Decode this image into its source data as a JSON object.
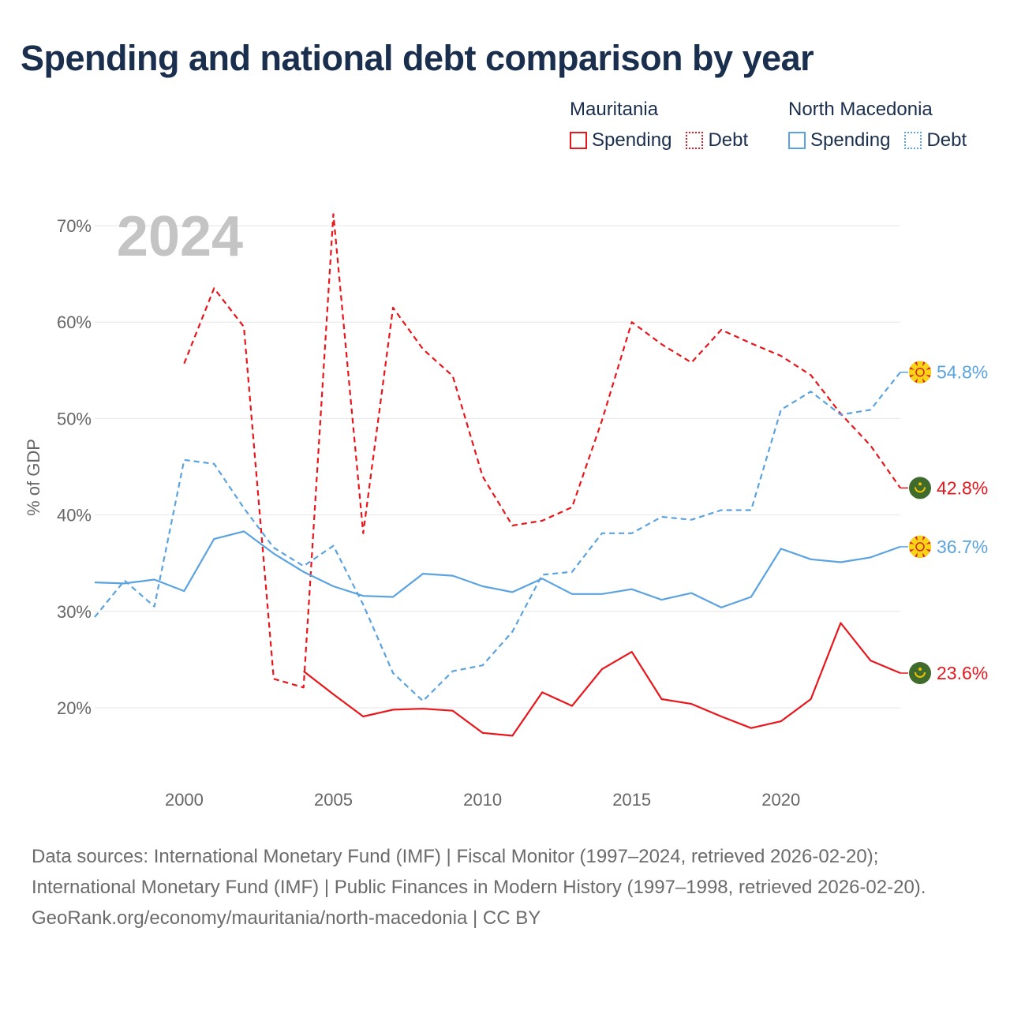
{
  "title": "Spending and national debt comparison by year",
  "legend": {
    "groups": [
      {
        "country": "Mauritania",
        "spending_label": "Spending",
        "debt_label": "Debt",
        "color": "#e8161b"
      },
      {
        "country": "North Macedonia",
        "spending_label": "Spending",
        "debt_label": "Debt",
        "color": "#5aa3e0"
      }
    ]
  },
  "year_badge": "2024",
  "footer": {
    "sources": "Data sources: International Monetary Fund (IMF) | Fiscal Monitor (1997–2024, retrieved 2026-02-20); International Monetary Fund (IMF) | Public Finances in Modern History (1997–1998, retrieved 2026-02-20).",
    "credit": "GeoRank.org/economy/mauritania/north-macedonia | CC BY"
  },
  "chart_data": {
    "type": "line",
    "title": "Spending and national debt comparison by year",
    "xlabel": "",
    "ylabel": "% of GDP",
    "xlim": [
      1997,
      2024
    ],
    "ylim": [
      15,
      72
    ],
    "x_ticks": [
      2000,
      2005,
      2010,
      2015,
      2020
    ],
    "x_tick_labels": [
      "2000",
      "2005",
      "2010",
      "2015",
      "2020"
    ],
    "y_ticks": [
      20,
      30,
      40,
      50,
      60,
      70
    ],
    "y_tick_labels": [
      "20%",
      "30%",
      "40%",
      "50%",
      "60%",
      "70%"
    ],
    "grid": true,
    "series": [
      {
        "name": "Mauritania Debt",
        "country": "Mauritania",
        "measure": "Debt",
        "style": "dashed",
        "color": "#e8161b",
        "x": [
          2000,
          2001,
          2002,
          2003,
          2004,
          2005,
          2006,
          2007,
          2008,
          2009,
          2010,
          2011,
          2012,
          2013,
          2014,
          2015,
          2016,
          2017,
          2018,
          2019,
          2020,
          2021,
          2022,
          2023,
          2024
        ],
        "values": [
          55.7,
          63.5,
          59.5,
          23.0,
          22.1,
          71.2,
          38.1,
          61.5,
          57.2,
          54.4,
          44.0,
          38.9,
          39.4,
          40.8,
          49.8,
          60.0,
          57.7,
          55.8,
          59.2,
          57.8,
          56.5,
          54.5,
          50.5,
          47.2,
          42.8
        ],
        "end_label": "42.8%"
      },
      {
        "name": "Mauritania Spending",
        "country": "Mauritania",
        "measure": "Spending",
        "style": "solid",
        "color": "#e8161b",
        "x": [
          2004,
          2005,
          2006,
          2007,
          2008,
          2009,
          2010,
          2011,
          2012,
          2013,
          2014,
          2015,
          2016,
          2017,
          2018,
          2019,
          2020,
          2021,
          2022,
          2023,
          2024
        ],
        "values": [
          23.8,
          21.4,
          19.1,
          19.8,
          19.9,
          19.7,
          17.4,
          17.1,
          21.6,
          20.2,
          24.0,
          25.8,
          20.9,
          20.4,
          19.1,
          17.9,
          18.6,
          20.9,
          28.8,
          24.9,
          23.6
        ],
        "end_label": "23.6%"
      },
      {
        "name": "North Macedonia Debt",
        "country": "North Macedonia",
        "measure": "Debt",
        "style": "dashed",
        "color": "#5aa3e0",
        "x": [
          1997,
          1998,
          1999,
          2000,
          2001,
          2002,
          2003,
          2004,
          2005,
          2006,
          2007,
          2008,
          2009,
          2010,
          2011,
          2012,
          2013,
          2014,
          2015,
          2016,
          2017,
          2018,
          2019,
          2020,
          2021,
          2022,
          2023,
          2024
        ],
        "values": [
          29.4,
          33.2,
          30.5,
          45.7,
          45.3,
          40.7,
          36.6,
          34.7,
          36.8,
          30.7,
          23.6,
          20.7,
          23.8,
          24.4,
          27.9,
          33.8,
          34.1,
          38.1,
          38.1,
          39.8,
          39.5,
          40.5,
          40.5,
          50.9,
          52.8,
          50.4,
          50.9,
          54.8
        ],
        "end_label": "54.8%"
      },
      {
        "name": "North Macedonia Spending",
        "country": "North Macedonia",
        "measure": "Spending",
        "style": "solid",
        "color": "#5aa3e0",
        "x": [
          1997,
          1998,
          1999,
          2000,
          2001,
          2002,
          2003,
          2004,
          2005,
          2006,
          2007,
          2008,
          2009,
          2010,
          2011,
          2012,
          2013,
          2014,
          2015,
          2016,
          2017,
          2018,
          2019,
          2020,
          2021,
          2022,
          2023,
          2024
        ],
        "values": [
          33.0,
          32.9,
          33.3,
          32.1,
          37.5,
          38.3,
          36.0,
          34.1,
          32.6,
          31.6,
          31.5,
          33.9,
          33.7,
          32.6,
          32.0,
          33.4,
          31.8,
          31.8,
          32.3,
          31.2,
          31.9,
          30.4,
          31.5,
          36.5,
          35.4,
          35.1,
          35.6,
          36.7
        ],
        "end_label": "36.7%"
      }
    ]
  }
}
